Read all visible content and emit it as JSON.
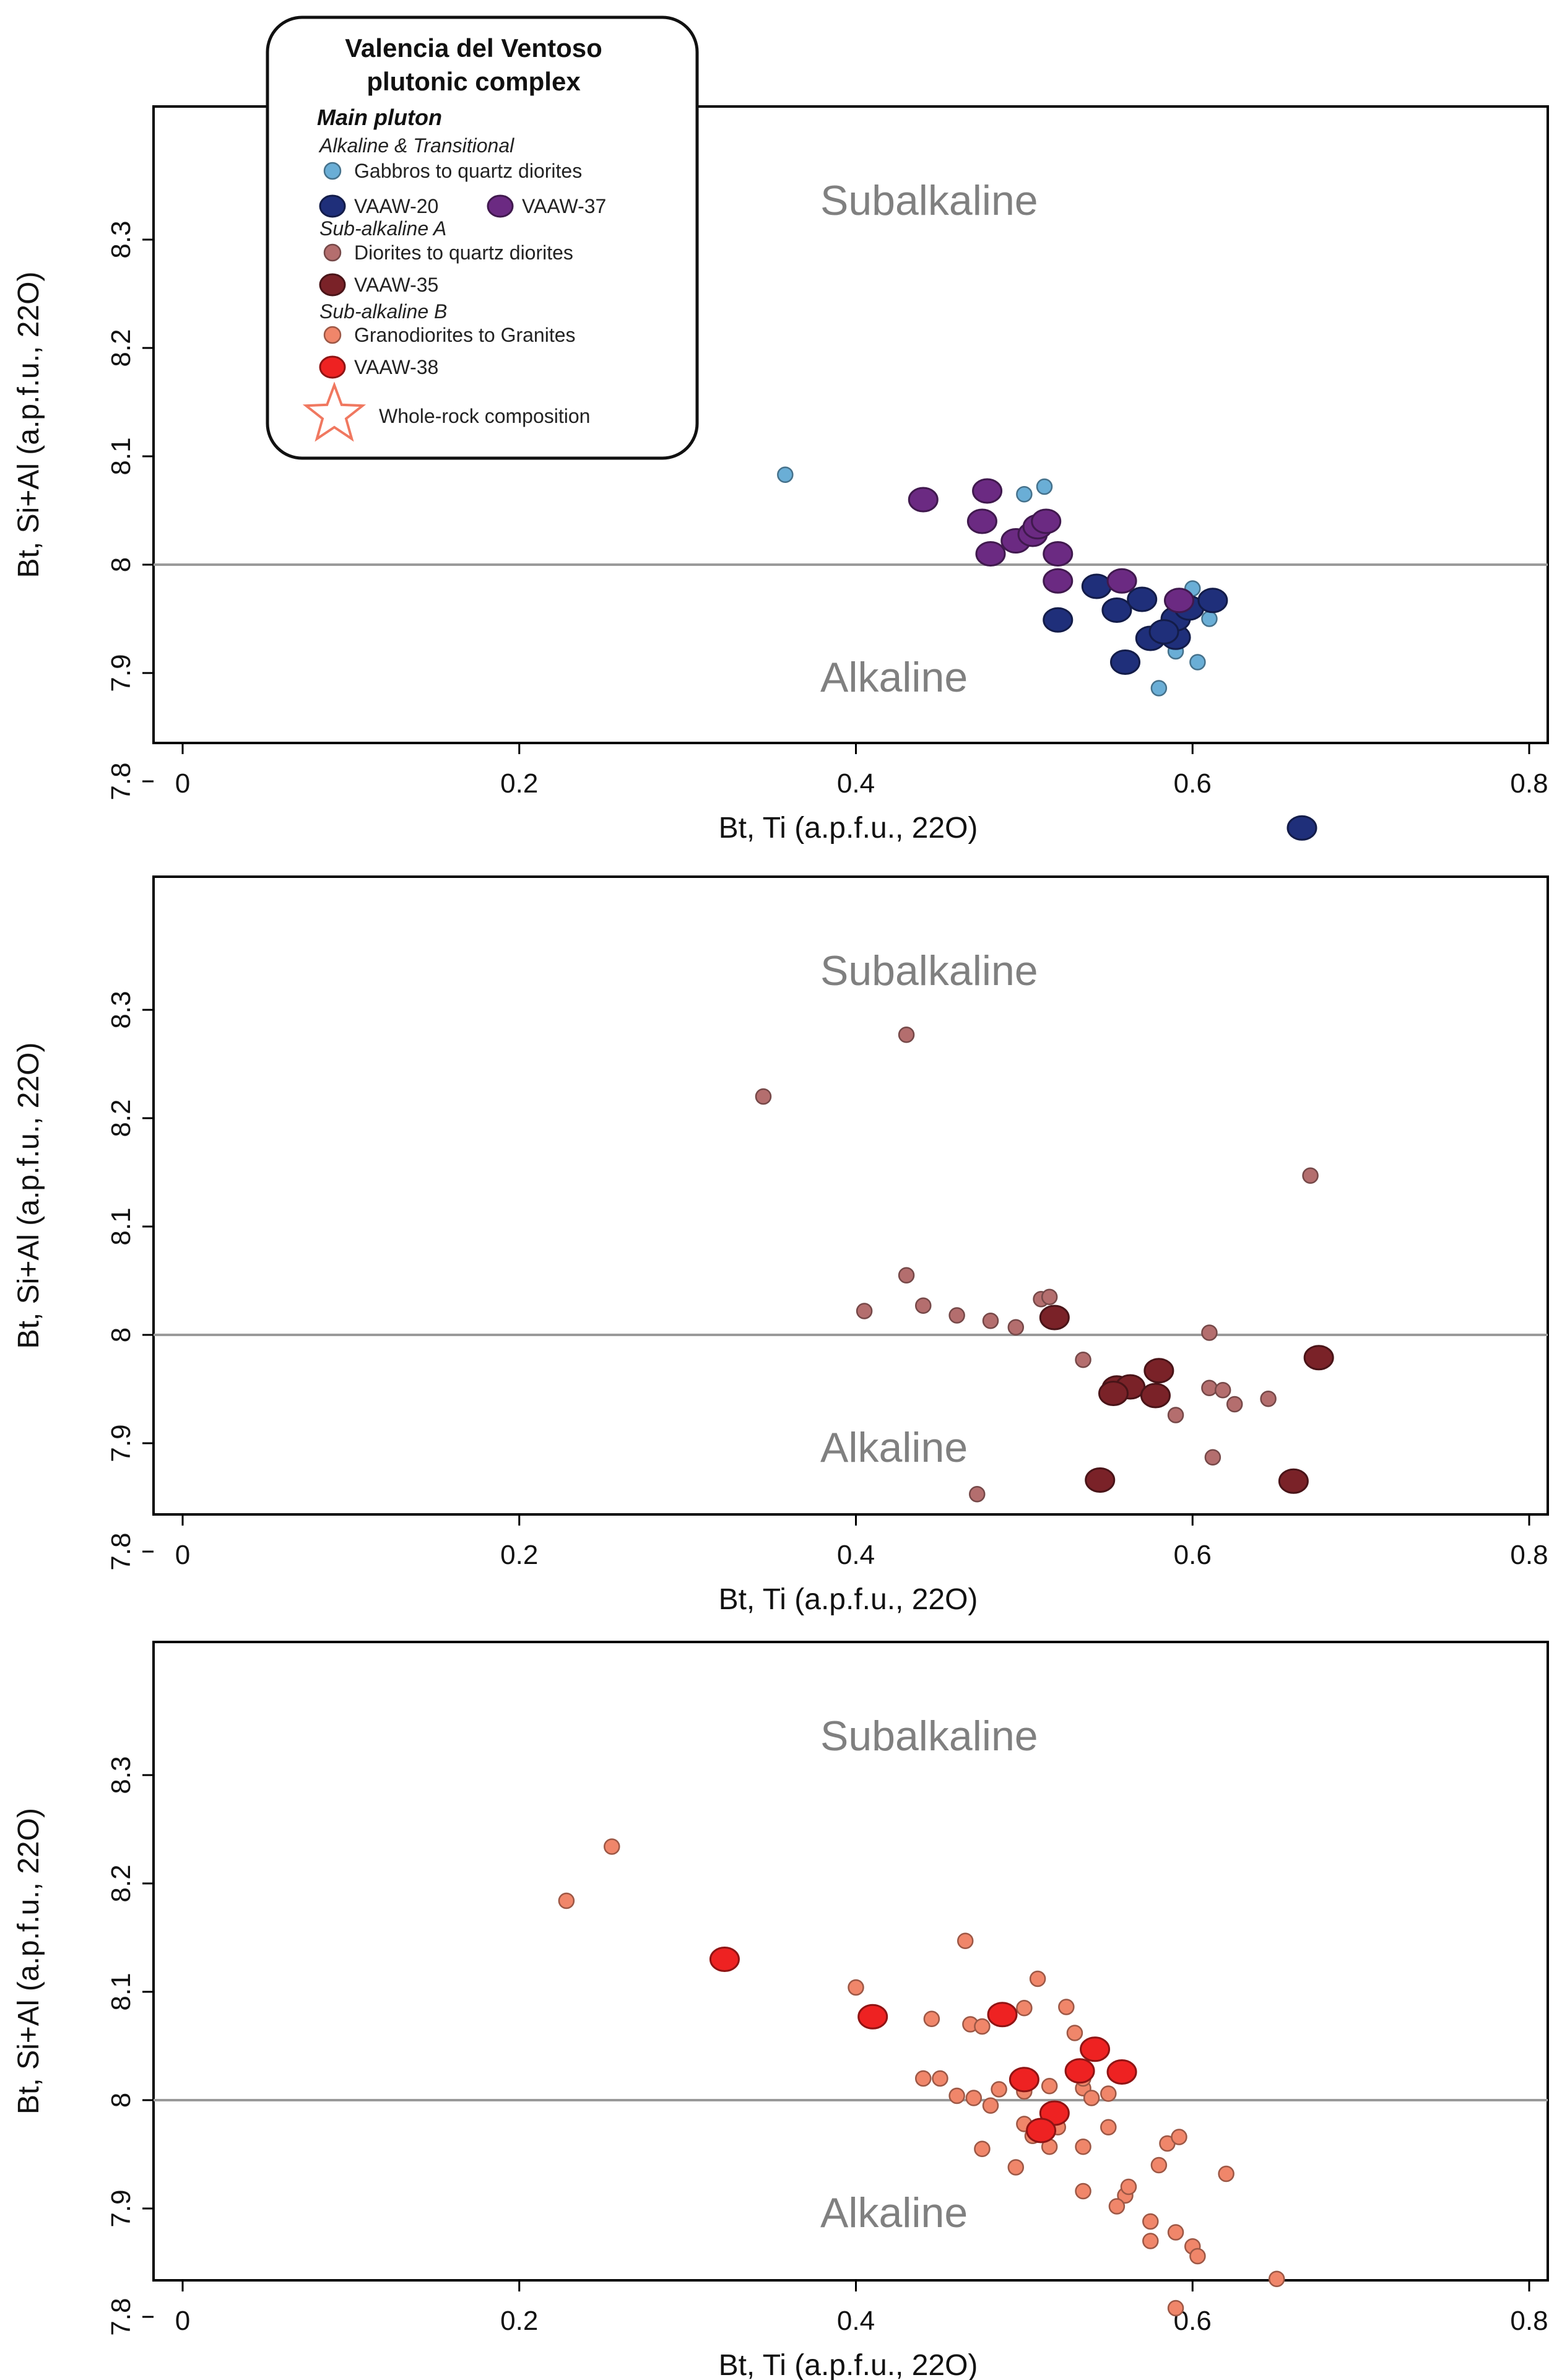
{
  "chart_data": [
    {
      "type": "scatter",
      "xlabel": "Bt, Ti (a.p.f.u., 22O)",
      "ylabel": "Bt, Si+Al (a.p.f.u., 22O)",
      "xlim": [
        0,
        0.8
      ],
      "ylim": [
        7.76,
        8.3
      ],
      "xticks": [
        "0",
        "0.2",
        "0.4",
        "0.6",
        "0.8"
      ],
      "yticks": [
        "7.8",
        "7.9",
        "8",
        "8.1",
        "8.2",
        "8.3"
      ],
      "reference_line_y": 8.0,
      "zone_labels": {
        "upper": "Subalkaline",
        "lower": "Alkaline"
      },
      "grid": false,
      "series": [
        {
          "name": "Gabbros to quartz diorites",
          "color": "#6aaed6",
          "marker": "small",
          "points": [
            [
              0.358,
              8.083
            ],
            [
              0.5,
              8.065
            ],
            [
              0.512,
              8.072
            ],
            [
              0.6,
              7.978
            ],
            [
              0.61,
              7.95
            ],
            [
              0.59,
              7.92
            ],
            [
              0.603,
              7.91
            ],
            [
              0.58,
              7.886
            ]
          ]
        },
        {
          "name": "VAAW-20",
          "color": "#1f2f7a",
          "marker": "large",
          "points": [
            [
              0.52,
              7.949
            ],
            [
              0.543,
              7.98
            ],
            [
              0.555,
              7.958
            ],
            [
              0.57,
              7.968
            ],
            [
              0.56,
              7.91
            ],
            [
              0.575,
              7.932
            ],
            [
              0.59,
              7.933
            ],
            [
              0.59,
              7.95
            ],
            [
              0.598,
              7.96
            ],
            [
              0.612,
              7.967
            ],
            [
              0.583,
              7.938
            ],
            [
              0.665,
              7.757
            ]
          ]
        },
        {
          "name": "VAAW-37",
          "color": "#6b2a82",
          "marker": "large",
          "points": [
            [
              0.44,
              8.06
            ],
            [
              0.478,
              8.068
            ],
            [
              0.475,
              8.04
            ],
            [
              0.48,
              8.01
            ],
            [
              0.495,
              8.022
            ],
            [
              0.505,
              8.028
            ],
            [
              0.508,
              8.035
            ],
            [
              0.513,
              8.04
            ],
            [
              0.52,
              8.01
            ],
            [
              0.52,
              7.985
            ],
            [
              0.558,
              7.985
            ],
            [
              0.592,
              7.967
            ]
          ]
        }
      ],
      "legend": {
        "title": "Valencia del Ventoso\nplutonic complex",
        "subtitle": "Main pluton",
        "groups": [
          {
            "heading": "Alkaline & Transitional",
            "items": [
              {
                "label": "Gabbros to quartz diorites",
                "color": "#6aaed6",
                "marker": "small"
              },
              {
                "label": "VAAW-20",
                "color": "#1f2f7a",
                "marker": "large"
              },
              {
                "label": "VAAW-37",
                "color": "#6b2a82",
                "marker": "large"
              }
            ]
          },
          {
            "heading": "Sub-alkaline A",
            "items": [
              {
                "label": "Diorites to quartz diorites",
                "color": "#b46e6e",
                "marker": "small"
              },
              {
                "label": "VAAW-35",
                "color": "#7a2228",
                "marker": "large"
              }
            ]
          },
          {
            "heading": "Sub-alkaline B",
            "items": [
              {
                "label": "Granodiorites to Granites",
                "color": "#f0866a",
                "marker": "small"
              },
              {
                "label": "VAAW-38",
                "color": "#ee2222",
                "marker": "large"
              }
            ]
          }
        ],
        "star_label": "Whole-rock composition",
        "star_color": "#f07860"
      }
    },
    {
      "type": "scatter",
      "xlabel": "Bt, Ti (a.p.f.u., 22O)",
      "ylabel": "Bt, Si+Al (a.p.f.u., 22O)",
      "xlim": [
        0,
        0.8
      ],
      "ylim": [
        7.76,
        8.3
      ],
      "xticks": [
        "0",
        "0.2",
        "0.4",
        "0.6",
        "0.8"
      ],
      "yticks": [
        "7.8",
        "7.9",
        "8",
        "8.1",
        "8.2",
        "8.3"
      ],
      "reference_line_y": 8.0,
      "zone_labels": {
        "upper": "Subalkaline",
        "lower": "Alkaline"
      },
      "grid": false,
      "series": [
        {
          "name": "Diorites to quartz diorites",
          "color": "#b46e6e",
          "marker": "small",
          "points": [
            [
              0.43,
              8.277
            ],
            [
              0.345,
              8.22
            ],
            [
              0.67,
              8.147
            ],
            [
              0.43,
              8.055
            ],
            [
              0.405,
              8.022
            ],
            [
              0.44,
              8.027
            ],
            [
              0.46,
              8.018
            ],
            [
              0.48,
              8.013
            ],
            [
              0.495,
              8.007
            ],
            [
              0.51,
              8.033
            ],
            [
              0.515,
              8.035
            ],
            [
              0.535,
              7.977
            ],
            [
              0.61,
              8.002
            ],
            [
              0.61,
              7.951
            ],
            [
              0.618,
              7.949
            ],
            [
              0.625,
              7.936
            ],
            [
              0.645,
              7.941
            ],
            [
              0.59,
              7.926
            ],
            [
              0.612,
              7.887
            ],
            [
              0.472,
              7.853
            ]
          ]
        },
        {
          "name": "VAAW-35",
          "color": "#7a2228",
          "marker": "large",
          "points": [
            [
              0.518,
              8.016
            ],
            [
              0.555,
              7.951
            ],
            [
              0.563,
              7.952
            ],
            [
              0.553,
              7.946
            ],
            [
              0.58,
              7.967
            ],
            [
              0.578,
              7.944
            ],
            [
              0.675,
              7.979
            ],
            [
              0.545,
              7.866
            ],
            [
              0.66,
              7.865
            ]
          ]
        }
      ]
    },
    {
      "type": "scatter",
      "xlabel": "Bt, Ti (a.p.f.u., 22O)",
      "ylabel": "Bt, Si+Al (a.p.f.u., 22O)",
      "xlim": [
        0,
        0.8
      ],
      "ylim": [
        7.76,
        8.3
      ],
      "xticks": [
        "0",
        "0.2",
        "0.4",
        "0.6",
        "0.8"
      ],
      "yticks": [
        "7.8",
        "7.9",
        "8",
        "8.1",
        "8.2",
        "8.3"
      ],
      "reference_line_y": 8.0,
      "zone_labels": {
        "upper": "Subalkaline",
        "lower": "Alkaline"
      },
      "grid": false,
      "series": [
        {
          "name": "Granodiorites to Granites",
          "color": "#f0866a",
          "marker": "small",
          "points": [
            [
              0.255,
              8.234
            ],
            [
              0.228,
              8.184
            ],
            [
              0.465,
              8.147
            ],
            [
              0.508,
              8.112
            ],
            [
              0.4,
              8.104
            ],
            [
              0.445,
              8.075
            ],
            [
              0.468,
              8.07
            ],
            [
              0.475,
              8.068
            ],
            [
              0.5,
              8.085
            ],
            [
              0.525,
              8.086
            ],
            [
              0.53,
              8.062
            ],
            [
              0.44,
              8.02
            ],
            [
              0.45,
              8.02
            ],
            [
              0.46,
              8.004
            ],
            [
              0.47,
              8.002
            ],
            [
              0.48,
              7.995
            ],
            [
              0.485,
              8.01
            ],
            [
              0.5,
              8.008
            ],
            [
              0.515,
              8.013
            ],
            [
              0.535,
              8.011
            ],
            [
              0.54,
              8.002
            ],
            [
              0.55,
              8.006
            ],
            [
              0.55,
              7.975
            ],
            [
              0.505,
              7.967
            ],
            [
              0.515,
              7.957
            ],
            [
              0.535,
              7.957
            ],
            [
              0.475,
              7.955
            ],
            [
              0.495,
              7.938
            ],
            [
              0.535,
              7.916
            ],
            [
              0.56,
              7.912
            ],
            [
              0.562,
              7.92
            ],
            [
              0.555,
              7.902
            ],
            [
              0.58,
              7.94
            ],
            [
              0.585,
              7.96
            ],
            [
              0.592,
              7.966
            ],
            [
              0.62,
              7.932
            ],
            [
              0.575,
              7.888
            ],
            [
              0.575,
              7.87
            ],
            [
              0.59,
              7.878
            ],
            [
              0.6,
              7.865
            ],
            [
              0.603,
              7.856
            ],
            [
              0.65,
              7.835
            ],
            [
              0.59,
              7.808
            ],
            [
              0.5,
              7.978
            ],
            [
              0.52,
              7.975
            ],
            [
              0.535,
              8.02
            ]
          ]
        },
        {
          "name": "VAAW-38",
          "color": "#ee2222",
          "marker": "large",
          "points": [
            [
              0.322,
              8.13
            ],
            [
              0.41,
              8.077
            ],
            [
              0.487,
              8.079
            ],
            [
              0.5,
              8.019
            ],
            [
              0.518,
              7.988
            ],
            [
              0.51,
              7.972
            ],
            [
              0.533,
              8.027
            ],
            [
              0.542,
              8.047
            ],
            [
              0.558,
              8.026
            ]
          ]
        }
      ]
    }
  ]
}
